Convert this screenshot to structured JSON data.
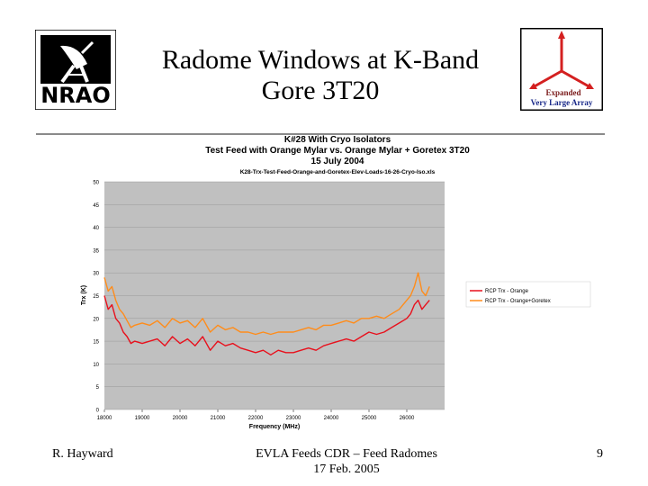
{
  "slide": {
    "title_line1": "Radome Windows at K-Band",
    "title_line2": "Gore 3T20"
  },
  "logos": {
    "nrao_icon": "nrao-logo-icon",
    "nrao_text": "NRAO",
    "evla_icon": "evla-logo-icon",
    "evla_line1": "Expanded",
    "evla_line2": "Very Large Array"
  },
  "footer": {
    "author": "R. Hayward",
    "event_line1": "EVLA Feeds CDR – Feed Radomes",
    "event_line2": "17 Feb. 2005",
    "page_number": "9"
  },
  "colors": {
    "plot_background": "#c0c0c0",
    "series_orange": "#ff8c1a",
    "series_red": "#e8101c"
  },
  "chart_data": {
    "type": "line",
    "title": "K#28 With Cryo Isolators",
    "subtitle_line1": "Test Feed with Orange Mylar vs. Orange Mylar + Goretex 3T20",
    "subtitle_line2": "15 July 2004",
    "filename": "K28-Trx-Test-Feed-Orange-and-Goretex-Elev-Loads-16-26-Cryo-Iso.xls",
    "xlabel": "Frequency (MHz)",
    "ylabel": "Trx (K)",
    "xlim": [
      18000,
      27000
    ],
    "ylim": [
      0,
      50
    ],
    "xticks": [
      18000,
      19000,
      20000,
      21000,
      22000,
      23000,
      24000,
      25000,
      26000
    ],
    "xtick_labels": [
      "18000",
      "19000",
      "20000",
      "21000",
      "22000",
      "23000",
      "24000",
      "25000",
      "26000"
    ],
    "yticks": [
      0,
      5,
      10,
      15,
      20,
      25,
      30,
      35,
      40,
      45,
      50
    ],
    "ytick_labels": [
      "0",
      "5",
      "10",
      "15",
      "20",
      "25",
      "30",
      "35",
      "40",
      "45",
      "50"
    ],
    "grid": "horizontal",
    "legend_position": "right",
    "series": [
      {
        "name": "RCP Trx - Orange",
        "color": "#e8101c",
        "x": [
          18000,
          18100,
          18200,
          18300,
          18400,
          18500,
          18600,
          18700,
          18800,
          19000,
          19200,
          19400,
          19600,
          19800,
          20000,
          20200,
          20400,
          20600,
          20800,
          21000,
          21200,
          21400,
          21600,
          21800,
          22000,
          22200,
          22400,
          22600,
          22800,
          23000,
          23200,
          23400,
          23600,
          23800,
          24000,
          24200,
          24400,
          24600,
          24800,
          25000,
          25200,
          25400,
          25600,
          25800,
          26000,
          26100,
          26200,
          26300,
          26400,
          26500,
          26600
        ],
        "y": [
          25,
          22,
          23,
          20,
          19,
          17,
          16,
          14.5,
          15,
          14.5,
          15,
          15.5,
          14,
          16,
          14.5,
          15.5,
          14,
          16,
          13,
          15,
          14,
          14.5,
          13.5,
          13,
          12.5,
          13,
          12,
          13,
          12.5,
          12.5,
          13,
          13.5,
          13,
          14,
          14.5,
          15,
          15.5,
          15,
          16,
          17,
          16.5,
          17,
          18,
          19,
          20,
          21,
          23,
          24,
          22,
          23,
          24
        ]
      },
      {
        "name": "RCP Trx - Orange+Goretex",
        "color": "#ff8c1a",
        "x": [
          18000,
          18100,
          18200,
          18300,
          18400,
          18500,
          18600,
          18700,
          18800,
          19000,
          19200,
          19400,
          19600,
          19800,
          20000,
          20200,
          20400,
          20600,
          20800,
          21000,
          21200,
          21400,
          21600,
          21800,
          22000,
          22200,
          22400,
          22600,
          22800,
          23000,
          23200,
          23400,
          23600,
          23800,
          24000,
          24200,
          24400,
          24600,
          24800,
          25000,
          25200,
          25400,
          25600,
          25800,
          26000,
          26100,
          26200,
          26300,
          26400,
          26500,
          26600
        ],
        "y": [
          29,
          26,
          27,
          24,
          22,
          21,
          19.5,
          18,
          18.5,
          19,
          18.5,
          19.5,
          18,
          20,
          19,
          19.5,
          18,
          20,
          17,
          18.5,
          17.5,
          18,
          17,
          17,
          16.5,
          17,
          16.5,
          17,
          17,
          17,
          17.5,
          18,
          17.5,
          18.5,
          18.5,
          19,
          19.5,
          19,
          20,
          20,
          20.5,
          20,
          21,
          22,
          24,
          25,
          27,
          30,
          26,
          25,
          27
        ]
      }
    ]
  }
}
